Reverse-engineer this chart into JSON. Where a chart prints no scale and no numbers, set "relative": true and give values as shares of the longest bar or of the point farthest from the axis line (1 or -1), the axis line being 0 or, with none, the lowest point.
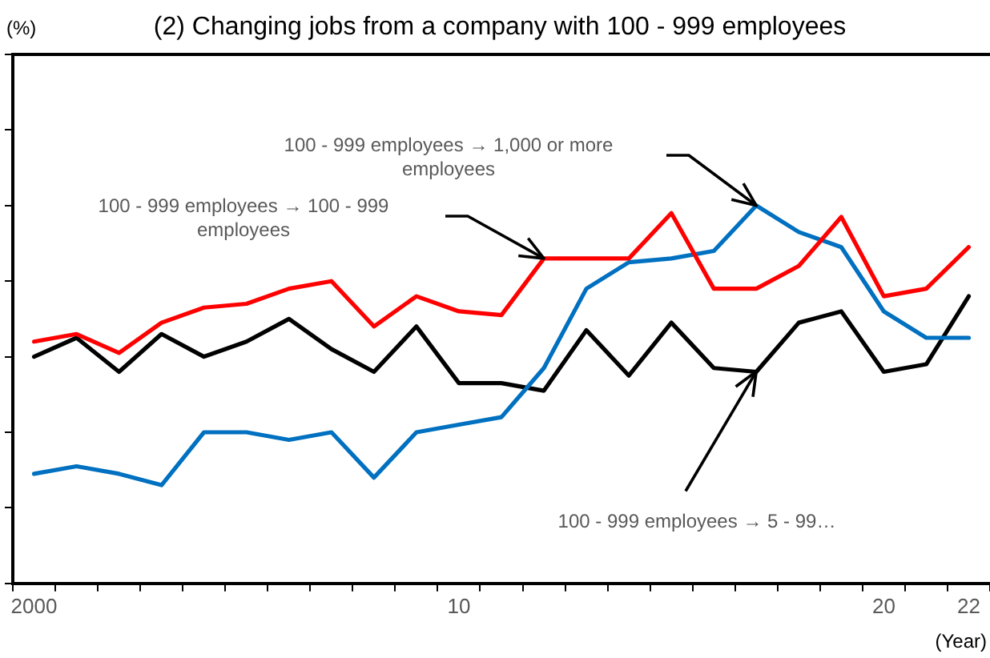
{
  "chart_data": {
    "type": "line",
    "title": "(2) Changing jobs from a company with 100 - 999 employees",
    "xlabel": "(Year)",
    "relative": true,
    "legend": false,
    "grid": false,
    "marker": "none",
    "line_style": "solid",
    "categories": [
      "2000",
      null,
      null,
      null,
      null,
      null,
      null,
      null,
      null,
      null,
      "10",
      null,
      null,
      null,
      null,
      null,
      null,
      null,
      null,
      null,
      "20",
      null,
      "22"
    ],
    "series": [
      {
        "color": "#ff0000",
        "values": [
          0.64,
          0.66,
          0.61,
          0.69,
          0.73,
          0.74,
          0.78,
          0.8,
          0.68,
          0.76,
          0.72,
          0.71,
          0.86,
          0.86,
          0.86,
          0.98,
          0.78,
          0.78,
          0.84,
          0.97,
          0.76,
          0.78,
          0.89
        ]
      },
      {
        "color": "#0070c0",
        "values": [
          0.29,
          0.31,
          0.29,
          0.26,
          0.4,
          0.4,
          0.38,
          0.4,
          0.28,
          0.4,
          0.42,
          0.44,
          0.57,
          0.78,
          0.85,
          0.86,
          0.88,
          1,
          0.93,
          0.89,
          0.72,
          0.65,
          0.65
        ]
      },
      {
        "color": "#000000",
        "values": [
          0.6,
          0.65,
          0.56,
          0.66,
          0.6,
          0.64,
          0.7,
          0.62,
          0.56,
          0.68,
          0.53,
          0.53,
          0.51,
          0.67,
          0.55,
          0.69,
          0.57,
          0.56,
          0.69,
          0.72,
          0.56,
          0.58,
          0.76
        ]
      }
    ],
    "annotations": [
      "(%)",
      "100 - 999 employees → 1,000 or more employees",
      "100 - 999 employees → 100 - 999 employees",
      "100 - 999 employees → 5 - 99…"
    ]
  }
}
